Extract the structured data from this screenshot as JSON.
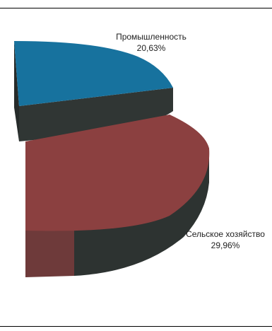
{
  "chart_data": {
    "type": "pie",
    "style": "3d-exploded-partial",
    "slices": [
      {
        "label": "Промышленность",
        "value_text": "20,63%",
        "value": 20.63,
        "color": "#17729e"
      },
      {
        "label": "Сельское хозяйство",
        "value_text": "29,96%",
        "value": 29.96,
        "color": "#8b4040"
      }
    ],
    "side_color": "#2f3533",
    "legend": "none"
  }
}
